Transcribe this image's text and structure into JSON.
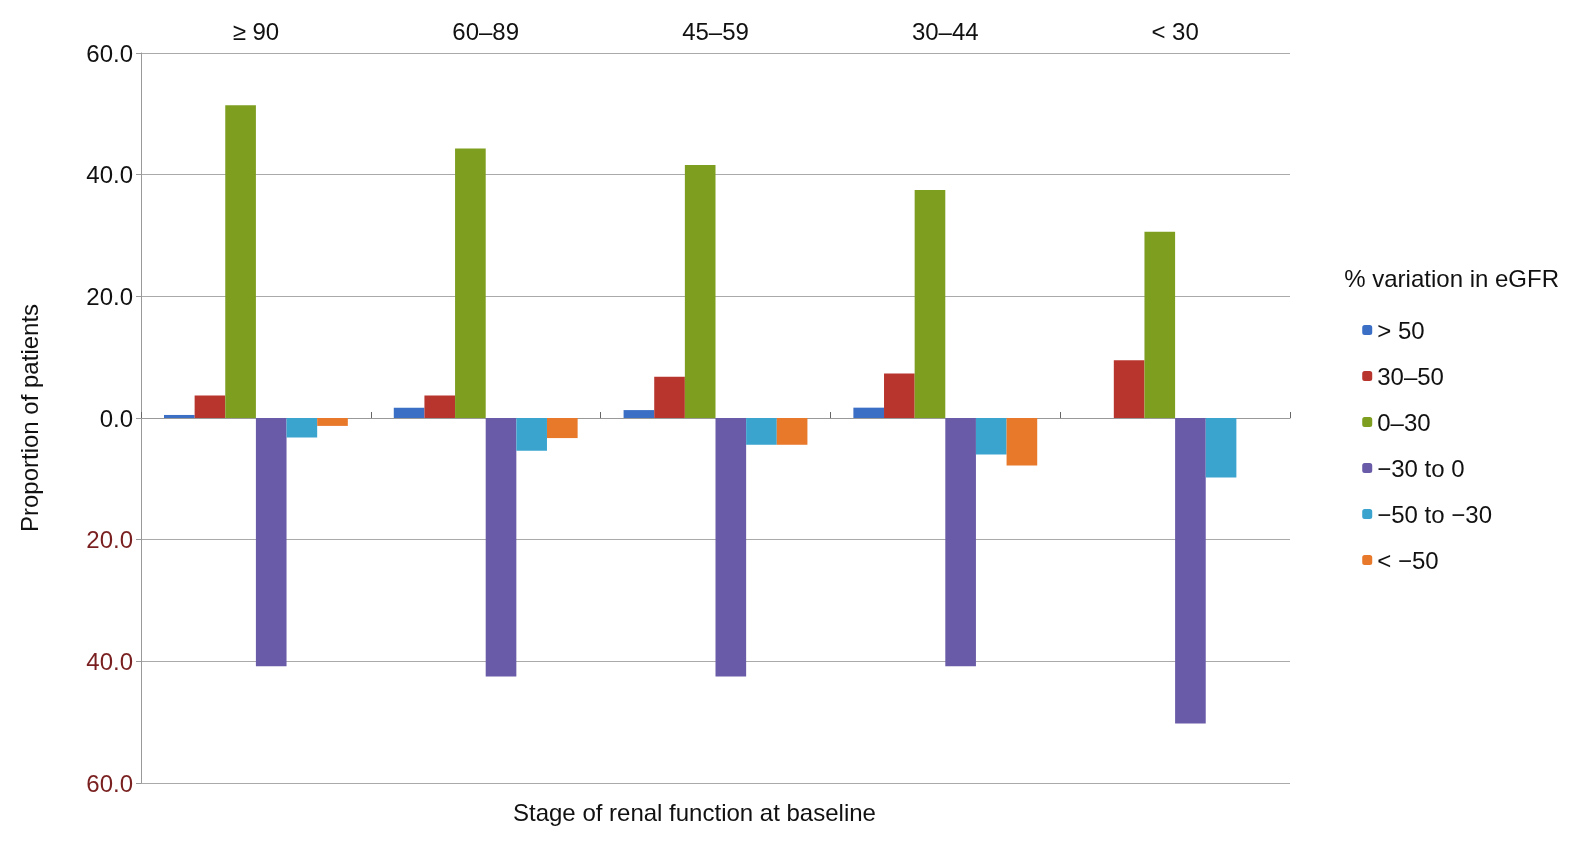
{
  "chart_data": {
    "type": "bar",
    "xlabel": "Stage of renal function at baseline",
    "ylabel": "Proportion of patients",
    "legend_title": "% variation in eGFR",
    "categories": [
      "≥ 90",
      "60–89",
      "45–59",
      "30–44",
      "< 30"
    ],
    "series": [
      {
        "name": "> 50",
        "color": "#3b6fc6",
        "values": [
          0.5,
          1.7,
          1.3,
          1.7,
          0
        ]
      },
      {
        "name": "30–50",
        "color": "#b8352d",
        "values": [
          3.7,
          3.7,
          6.8,
          7.3,
          9.5
        ]
      },
      {
        "name": "0–30",
        "color": "#7d9e1f",
        "values": [
          51.4,
          44.3,
          41.6,
          37.5,
          30.6
        ]
      },
      {
        "name": "−30 to 0",
        "color": "#6a5ba8",
        "values": [
          -40.8,
          -42.5,
          -42.5,
          -40.8,
          -50.2
        ]
      },
      {
        "name": "−50 to −30",
        "color": "#3aa4cf",
        "values": [
          -3.2,
          -5.4,
          -4.4,
          -6.0,
          -9.8
        ]
      },
      {
        "name": "< −50",
        "color": "#e8782a",
        "values": [
          -1.3,
          -3.3,
          -4.4,
          -7.8,
          0
        ]
      }
    ],
    "ylim": [
      -60,
      60
    ],
    "yticks": [
      {
        "value": -60,
        "label": "60.0"
      },
      {
        "value": -40,
        "label": "40.0"
      },
      {
        "value": -20,
        "label": "20.0"
      },
      {
        "value": 0,
        "label": "0.0"
      },
      {
        "value": 20,
        "label": "20.0"
      },
      {
        "value": 40,
        "label": "40.0"
      },
      {
        "value": 60,
        "label": "60.0"
      }
    ],
    "grid": "y",
    "legend": "right"
  }
}
